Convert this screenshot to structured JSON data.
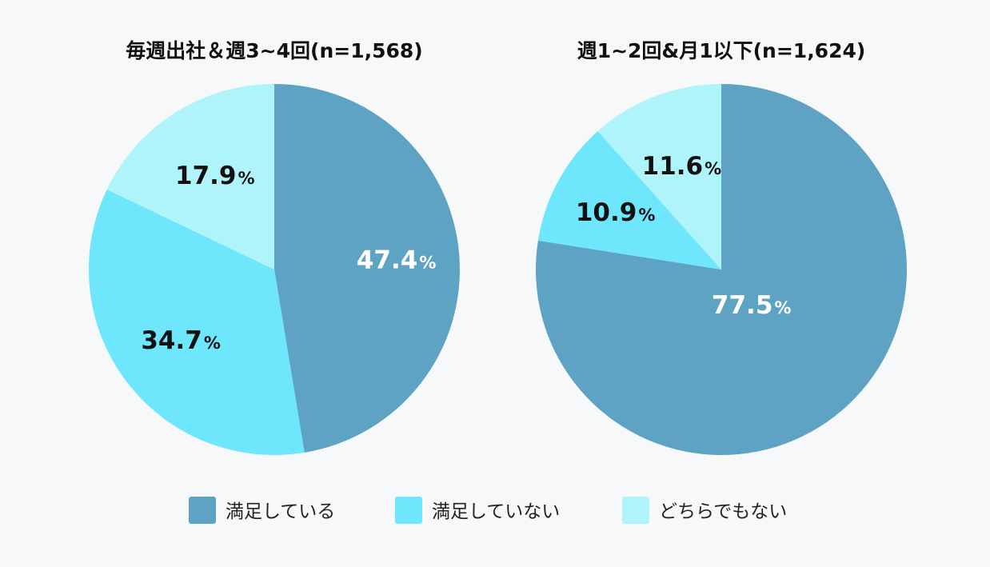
{
  "chart_data": [
    {
      "type": "pie",
      "title": "毎週出社＆週3~4回(n=1,568)",
      "slices": [
        {
          "category": "満足している",
          "value": 47.4,
          "label": "47.4",
          "unit": "%"
        },
        {
          "category": "満足していない",
          "value": 34.7,
          "label": "34.7",
          "unit": "%"
        },
        {
          "category": "どちらでもない",
          "value": 17.9,
          "label": "17.9",
          "unit": "%"
        }
      ]
    },
    {
      "type": "pie",
      "title": "週1~2回&月1以下(n=1,624)",
      "slices": [
        {
          "category": "満足している",
          "value": 77.5,
          "label": "77.5",
          "unit": "%"
        },
        {
          "category": "満足していない",
          "value": 10.9,
          "label": "10.9",
          "unit": "%"
        },
        {
          "category": "どちらでもない",
          "value": 11.6,
          "label": "11.6",
          "unit": "%"
        }
      ]
    }
  ],
  "legend": [
    {
      "label": "満足している",
      "color": "#5fa3c4"
    },
    {
      "label": "満足していない",
      "color": "#6ee6fb"
    },
    {
      "label": "どちらでもない",
      "color": "#b0f4fb"
    }
  ],
  "colors": {
    "background": "#f7f8fa",
    "label_on_dark": "#ffffff",
    "label_on_light": "#111111"
  }
}
